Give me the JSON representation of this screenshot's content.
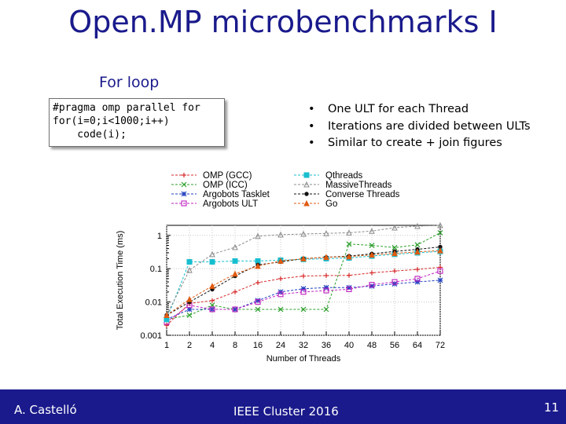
{
  "slide": {
    "title": "Open.MP microbenchmarks I",
    "section_heading": "For loop",
    "code_lines": [
      "#pragma omp parallel for",
      "for(i=0;i<1000;i++)",
      "    code(i);"
    ],
    "bullets": [
      "One ULT for each Thread",
      "Iterations are divided between ULTs",
      "Similar to create + join figures"
    ],
    "bullet_marker": "•"
  },
  "footer": {
    "author": "A. Castelló",
    "conference": "IEEE Cluster 2016",
    "page_number": "11",
    "background": "#1a1a8c"
  },
  "chart_data": {
    "type": "line",
    "xlabel": "Number of Threads",
    "ylabel": "Total Execution Time (ms)",
    "y_scale": "log",
    "ylim": [
      0.001,
      2
    ],
    "grid": true,
    "legend_position": "top",
    "categories": [
      "1",
      "2",
      "4",
      "8",
      "16",
      "24",
      "32",
      "36",
      "40",
      "48",
      "56",
      "64",
      "72"
    ],
    "y_ticks": [
      "0.001",
      "0.01",
      "0.1",
      "1"
    ],
    "series": [
      {
        "name": "OMP (GCC)",
        "color": "#d62728",
        "marker": "plus",
        "values": [
          0.002,
          0.009,
          0.011,
          0.02,
          0.038,
          0.05,
          0.06,
          0.062,
          0.063,
          0.075,
          0.085,
          0.095,
          0.11
        ]
      },
      {
        "name": "OMP (ICC)",
        "color": "#2ca02c",
        "marker": "x",
        "values": [
          0.003,
          0.004,
          0.008,
          0.006,
          0.006,
          0.006,
          0.006,
          0.006,
          0.55,
          0.5,
          0.43,
          0.52,
          1.2
        ]
      },
      {
        "name": "Argobots Tasklet",
        "color": "#1f3fbf",
        "marker": "star",
        "values": [
          0.003,
          0.006,
          0.006,
          0.006,
          0.011,
          0.02,
          0.025,
          0.027,
          0.027,
          0.03,
          0.035,
          0.04,
          0.045
        ]
      },
      {
        "name": "Argobots ULT",
        "color": "#c020c0",
        "marker": "square",
        "values": [
          0.0025,
          0.008,
          0.006,
          0.006,
          0.01,
          0.017,
          0.02,
          0.022,
          0.024,
          0.033,
          0.04,
          0.05,
          0.085
        ]
      },
      {
        "name": "Qthreads",
        "color": "#17becf",
        "marker": "filled-square",
        "values": [
          0.003,
          0.16,
          0.16,
          0.17,
          0.17,
          0.18,
          0.19,
          0.2,
          0.21,
          0.24,
          0.27,
          0.3,
          0.33
        ]
      },
      {
        "name": "MassiveThreads",
        "color": "#8c8c8c",
        "marker": "triangle",
        "values": [
          0.004,
          0.09,
          0.27,
          0.44,
          0.95,
          1.05,
          1.1,
          1.15,
          1.2,
          1.35,
          1.7,
          1.9,
          2.0
        ]
      },
      {
        "name": "Converse Threads",
        "color": "#111111",
        "marker": "circle",
        "values": [
          0.004,
          0.01,
          0.024,
          0.06,
          0.13,
          0.16,
          0.2,
          0.22,
          0.24,
          0.28,
          0.33,
          0.38,
          0.45
        ]
      },
      {
        "name": "Go",
        "color": "#e05a10",
        "marker": "triangle-filled",
        "values": [
          0.004,
          0.012,
          0.03,
          0.07,
          0.12,
          0.17,
          0.2,
          0.22,
          0.23,
          0.26,
          0.29,
          0.32,
          0.35
        ]
      }
    ]
  }
}
